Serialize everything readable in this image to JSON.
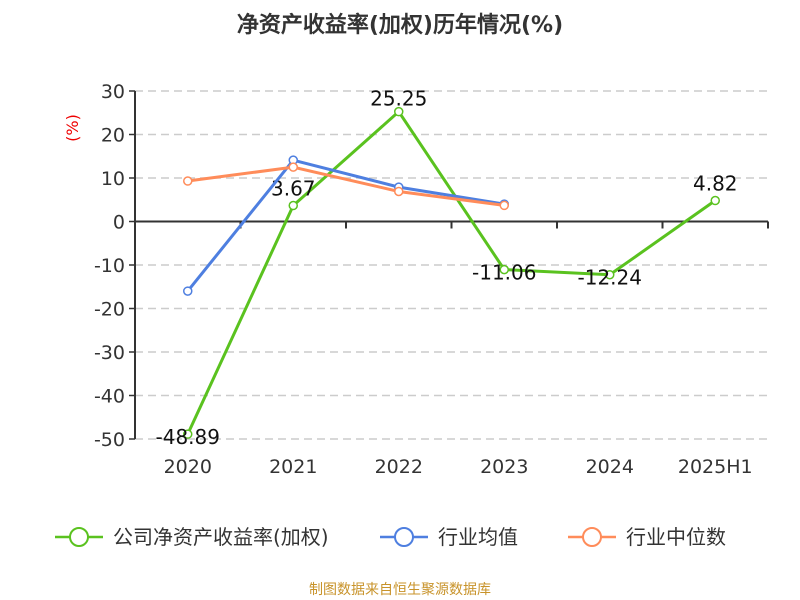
{
  "chart_data": {
    "type": "line",
    "title": "净资产收益率(加权)历年情况(%)",
    "ylabel": "(%)",
    "categories": [
      "2020",
      "2021",
      "2022",
      "2023",
      "2024",
      "2025H1"
    ],
    "ylim": [
      -50,
      30
    ],
    "yticks": [
      30,
      20,
      10,
      0,
      -10,
      -20,
      -30,
      -40,
      -50
    ],
    "grid": true,
    "legend_position": "bottom",
    "series": [
      {
        "name": "公司净资产收益率(加权)",
        "color": "#5ac21f",
        "values": [
          -48.89,
          3.67,
          25.25,
          -11.06,
          -12.24,
          4.82
        ],
        "labels": [
          "-48.89",
          "3.67",
          "25.25",
          "-11.06",
          "-12.24",
          "4.82"
        ]
      },
      {
        "name": "行业均值",
        "color": "#4e7fe0",
        "values": [
          -16.0,
          14.1,
          7.9,
          4.0,
          null,
          null
        ]
      },
      {
        "name": "行业中位数",
        "color": "#ff8c5a",
        "values": [
          9.3,
          12.5,
          6.9,
          3.7,
          null,
          null
        ]
      }
    ]
  },
  "source": "制图数据来自恒生聚源数据库"
}
